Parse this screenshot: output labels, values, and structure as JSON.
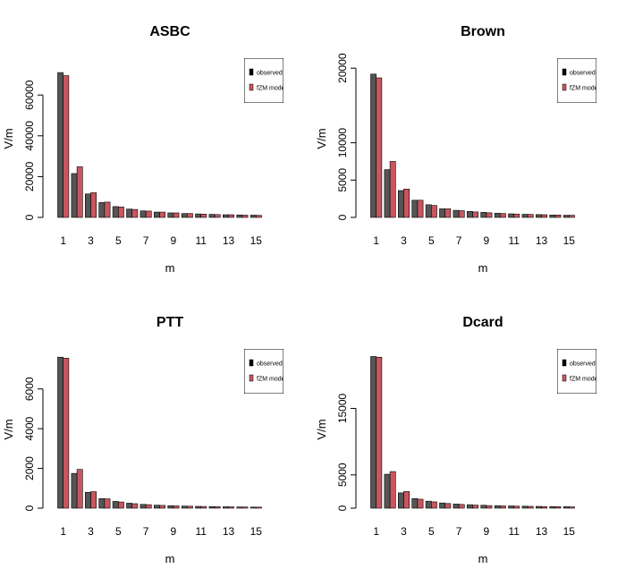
{
  "colors": {
    "observed": "#555555",
    "model": "#C8565E",
    "axis": "#000000"
  },
  "chart_data": [
    {
      "type": "bar",
      "title": "ASBC",
      "xlabel": "m",
      "ylabel": "V/m",
      "ylim": [
        0,
        75000
      ],
      "yticks": [
        0,
        20000,
        40000,
        60000
      ],
      "ytick_labels": [
        "0",
        "20000",
        "40000",
        "60000"
      ],
      "categories": [
        1,
        2,
        3,
        4,
        5,
        6,
        7,
        8,
        9,
        10,
        11,
        12,
        13,
        14,
        15
      ],
      "xtick_labels": [
        "1",
        "3",
        "5",
        "7",
        "9",
        "11",
        "13",
        "15"
      ],
      "legend": [
        "observed",
        "fZM model"
      ],
      "legend_position": "top-right",
      "series": [
        {
          "name": "observed",
          "values": [
            71000,
            21500,
            11500,
            7300,
            5300,
            4100,
            3200,
            2600,
            2200,
            1900,
            1700,
            1500,
            1300,
            1200,
            1100
          ]
        },
        {
          "name": "fZM model",
          "values": [
            69500,
            24800,
            12100,
            7500,
            5100,
            3900,
            3100,
            2600,
            2200,
            1900,
            1600,
            1400,
            1300,
            1100,
            1000
          ]
        }
      ]
    },
    {
      "type": "bar",
      "title": "Brown",
      "xlabel": "m",
      "ylabel": "V/m",
      "ylim": [
        0,
        20500
      ],
      "yticks": [
        0,
        5000,
        10000,
        20000
      ],
      "ytick_labels": [
        "0",
        "5000",
        "10000",
        "20000"
      ],
      "categories": [
        1,
        2,
        3,
        4,
        5,
        6,
        7,
        8,
        9,
        10,
        11,
        12,
        13,
        14,
        15
      ],
      "xtick_labels": [
        "1",
        "3",
        "5",
        "7",
        "9",
        "11",
        "13",
        "15"
      ],
      "legend": [
        "observed",
        "fZM model"
      ],
      "legend_position": "top-right",
      "series": [
        {
          "name": "observed",
          "values": [
            19200,
            6400,
            3600,
            2300,
            1700,
            1150,
            950,
            800,
            680,
            560,
            480,
            420,
            380,
            320,
            290
          ]
        },
        {
          "name": "fZM model",
          "values": [
            18700,
            7500,
            3800,
            2300,
            1600,
            1150,
            900,
            730,
            610,
            520,
            450,
            400,
            360,
            320,
            290
          ]
        }
      ]
    },
    {
      "type": "bar",
      "title": "PTT",
      "xlabel": "m",
      "ylabel": "V/m",
      "ylim": [
        0,
        7700
      ],
      "yticks": [
        0,
        2000,
        4000,
        6000
      ],
      "ytick_labels": [
        "0",
        "2000",
        "4000",
        "6000"
      ],
      "categories": [
        1,
        2,
        3,
        4,
        5,
        6,
        7,
        8,
        9,
        10,
        11,
        12,
        13,
        14,
        15
      ],
      "xtick_labels": [
        "1",
        "3",
        "5",
        "7",
        "9",
        "11",
        "13",
        "15"
      ],
      "legend": [
        "observed",
        "fZM model"
      ],
      "legend_position": "top-right",
      "series": [
        {
          "name": "observed",
          "values": [
            7600,
            1750,
            800,
            480,
            340,
            250,
            190,
            150,
            125,
            105,
            90,
            80,
            70,
            60,
            55
          ]
        },
        {
          "name": "fZM model",
          "values": [
            7550,
            1950,
            830,
            470,
            310,
            225,
            175,
            140,
            115,
            98,
            85,
            74,
            65,
            58,
            52
          ]
        }
      ]
    },
    {
      "type": "bar",
      "title": "Dcard",
      "xlabel": "m",
      "ylabel": "V/m",
      "ylim": [
        0,
        23000
      ],
      "yticks": [
        0,
        5000,
        15000
      ],
      "ytick_labels": [
        "0",
        "5000",
        "15000"
      ],
      "categories": [
        1,
        2,
        3,
        4,
        5,
        6,
        7,
        8,
        9,
        10,
        11,
        12,
        13,
        14,
        15
      ],
      "xtick_labels": [
        "1",
        "3",
        "5",
        "7",
        "9",
        "11",
        "13",
        "15"
      ],
      "legend": [
        "observed",
        "fZM model"
      ],
      "legend_position": "top-right",
      "series": [
        {
          "name": "observed",
          "values": [
            22800,
            5100,
            2300,
            1450,
            1050,
            780,
            620,
            520,
            440,
            380,
            340,
            300,
            270,
            240,
            220
          ]
        },
        {
          "name": "fZM model",
          "values": [
            22700,
            5500,
            2500,
            1350,
            950,
            700,
            560,
            460,
            390,
            340,
            300,
            270,
            240,
            220,
            200
          ]
        }
      ]
    }
  ]
}
